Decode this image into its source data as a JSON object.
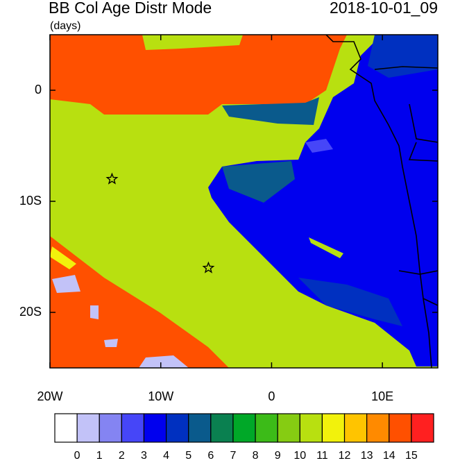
{
  "chart_data": {
    "type": "map",
    "title": "BB Col Age Distr Mode",
    "subtitle": "(days)",
    "time_label": "2018-10-01_09",
    "xlim": [
      -20,
      15
    ],
    "ylim": [
      -25,
      5
    ],
    "xticks": [
      {
        "value": -20,
        "label": "20W"
      },
      {
        "value": -10,
        "label": "10W"
      },
      0,
      {
        "value": 10,
        "label": "10E"
      }
    ],
    "yticks": [
      0,
      {
        "value": -10,
        "label": "10S"
      },
      {
        "value": -20,
        "label": "20S"
      }
    ],
    "levels": [
      0,
      1,
      2,
      3,
      4,
      5,
      6,
      7,
      8,
      9,
      10,
      11,
      12,
      13,
      14,
      15
    ],
    "colors": [
      "#ffffff",
      "#c2c2f8",
      "#8484f2",
      "#4646f8",
      "#0000ee",
      "#0030c0",
      "#0a5a8c",
      "#0a8050",
      "#00a828",
      "#3cbb18",
      "#86cc12",
      "#b8e010",
      "#f2f20c",
      "#ffc400",
      "#ff8a00",
      "#ff5000",
      "#ff2020"
    ],
    "markers": [
      {
        "lon": -14.4,
        "lat": -8
      },
      {
        "lon": -5.7,
        "lat": -16
      }
    ]
  }
}
